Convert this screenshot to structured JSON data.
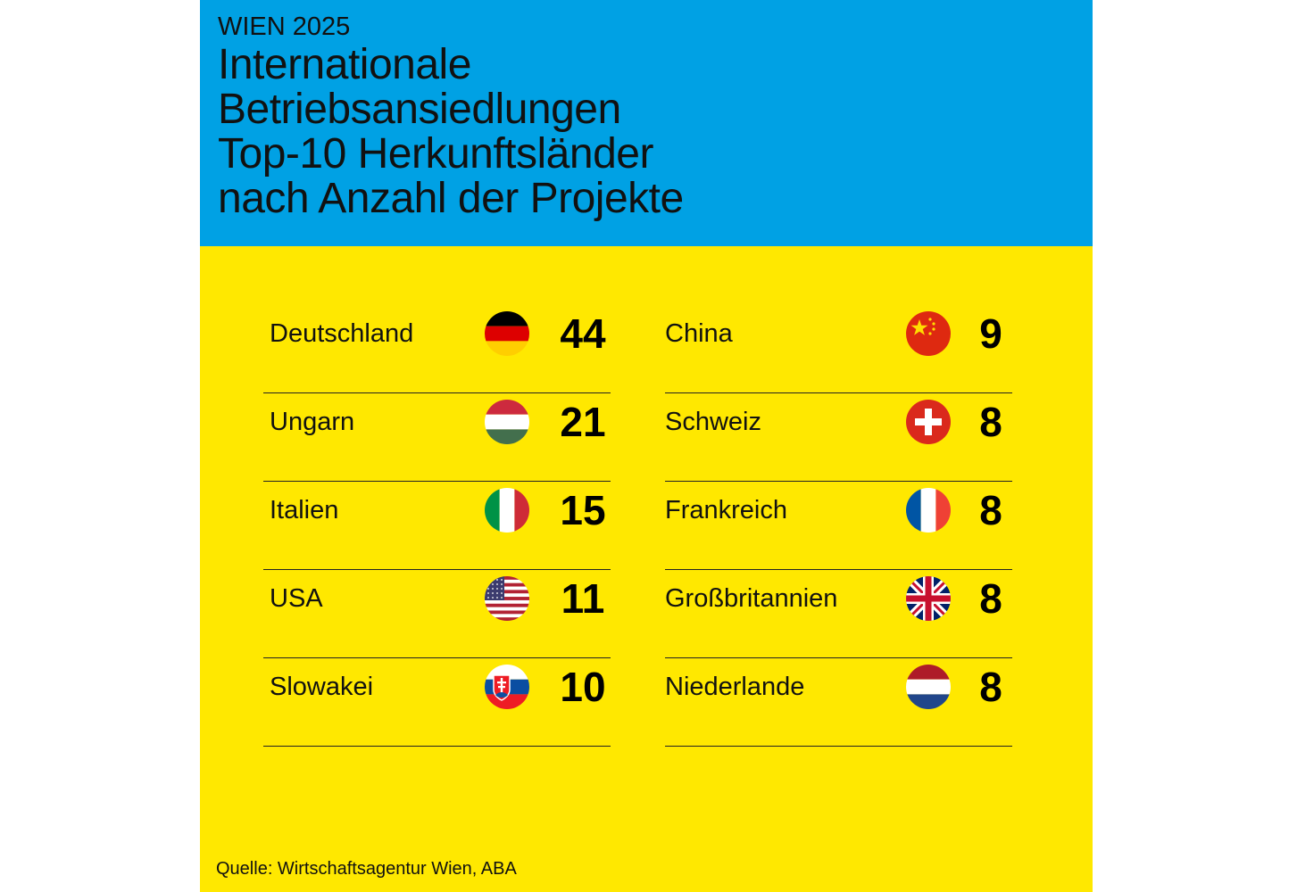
{
  "header": {
    "kicker": "WIEN 2025",
    "title_lines": [
      "Internationale",
      "Betriebsansiedlungen",
      "Top-10 Herkunftsländer",
      "nach Anzahl der Projekte"
    ]
  },
  "colors": {
    "header_bg": "#00a1e4",
    "body_bg": "#ffe800",
    "text": "#111111"
  },
  "chart_data": {
    "type": "table",
    "title": "Internationale Betriebsansiedlungen Top-10 Herkunftsländer nach Anzahl der Projekte",
    "columns": [
      {
        "rows": [
          {
            "country": "Deutschland",
            "flag": "germany-flag-icon",
            "value": 44
          },
          {
            "country": "Ungarn",
            "flag": "hungary-flag-icon",
            "value": 21
          },
          {
            "country": "Italien",
            "flag": "italy-flag-icon",
            "value": 15
          },
          {
            "country": "USA",
            "flag": "usa-flag-icon",
            "value": 11
          },
          {
            "country": "Slowakei",
            "flag": "slovakia-flag-icon",
            "value": 10
          }
        ]
      },
      {
        "rows": [
          {
            "country": "China",
            "flag": "china-flag-icon",
            "value": 9
          },
          {
            "country": "Schweiz",
            "flag": "switzerland-flag-icon",
            "value": 8
          },
          {
            "country": "Frankreich",
            "flag": "france-flag-icon",
            "value": 8
          },
          {
            "country": "Großbritannien",
            "flag": "uk-flag-icon",
            "value": 8
          },
          {
            "country": "Niederlande",
            "flag": "netherlands-flag-icon",
            "value": 8
          }
        ]
      }
    ]
  },
  "footer": {
    "source": "Quelle: Wirtschaftsagentur Wien, ABA"
  }
}
